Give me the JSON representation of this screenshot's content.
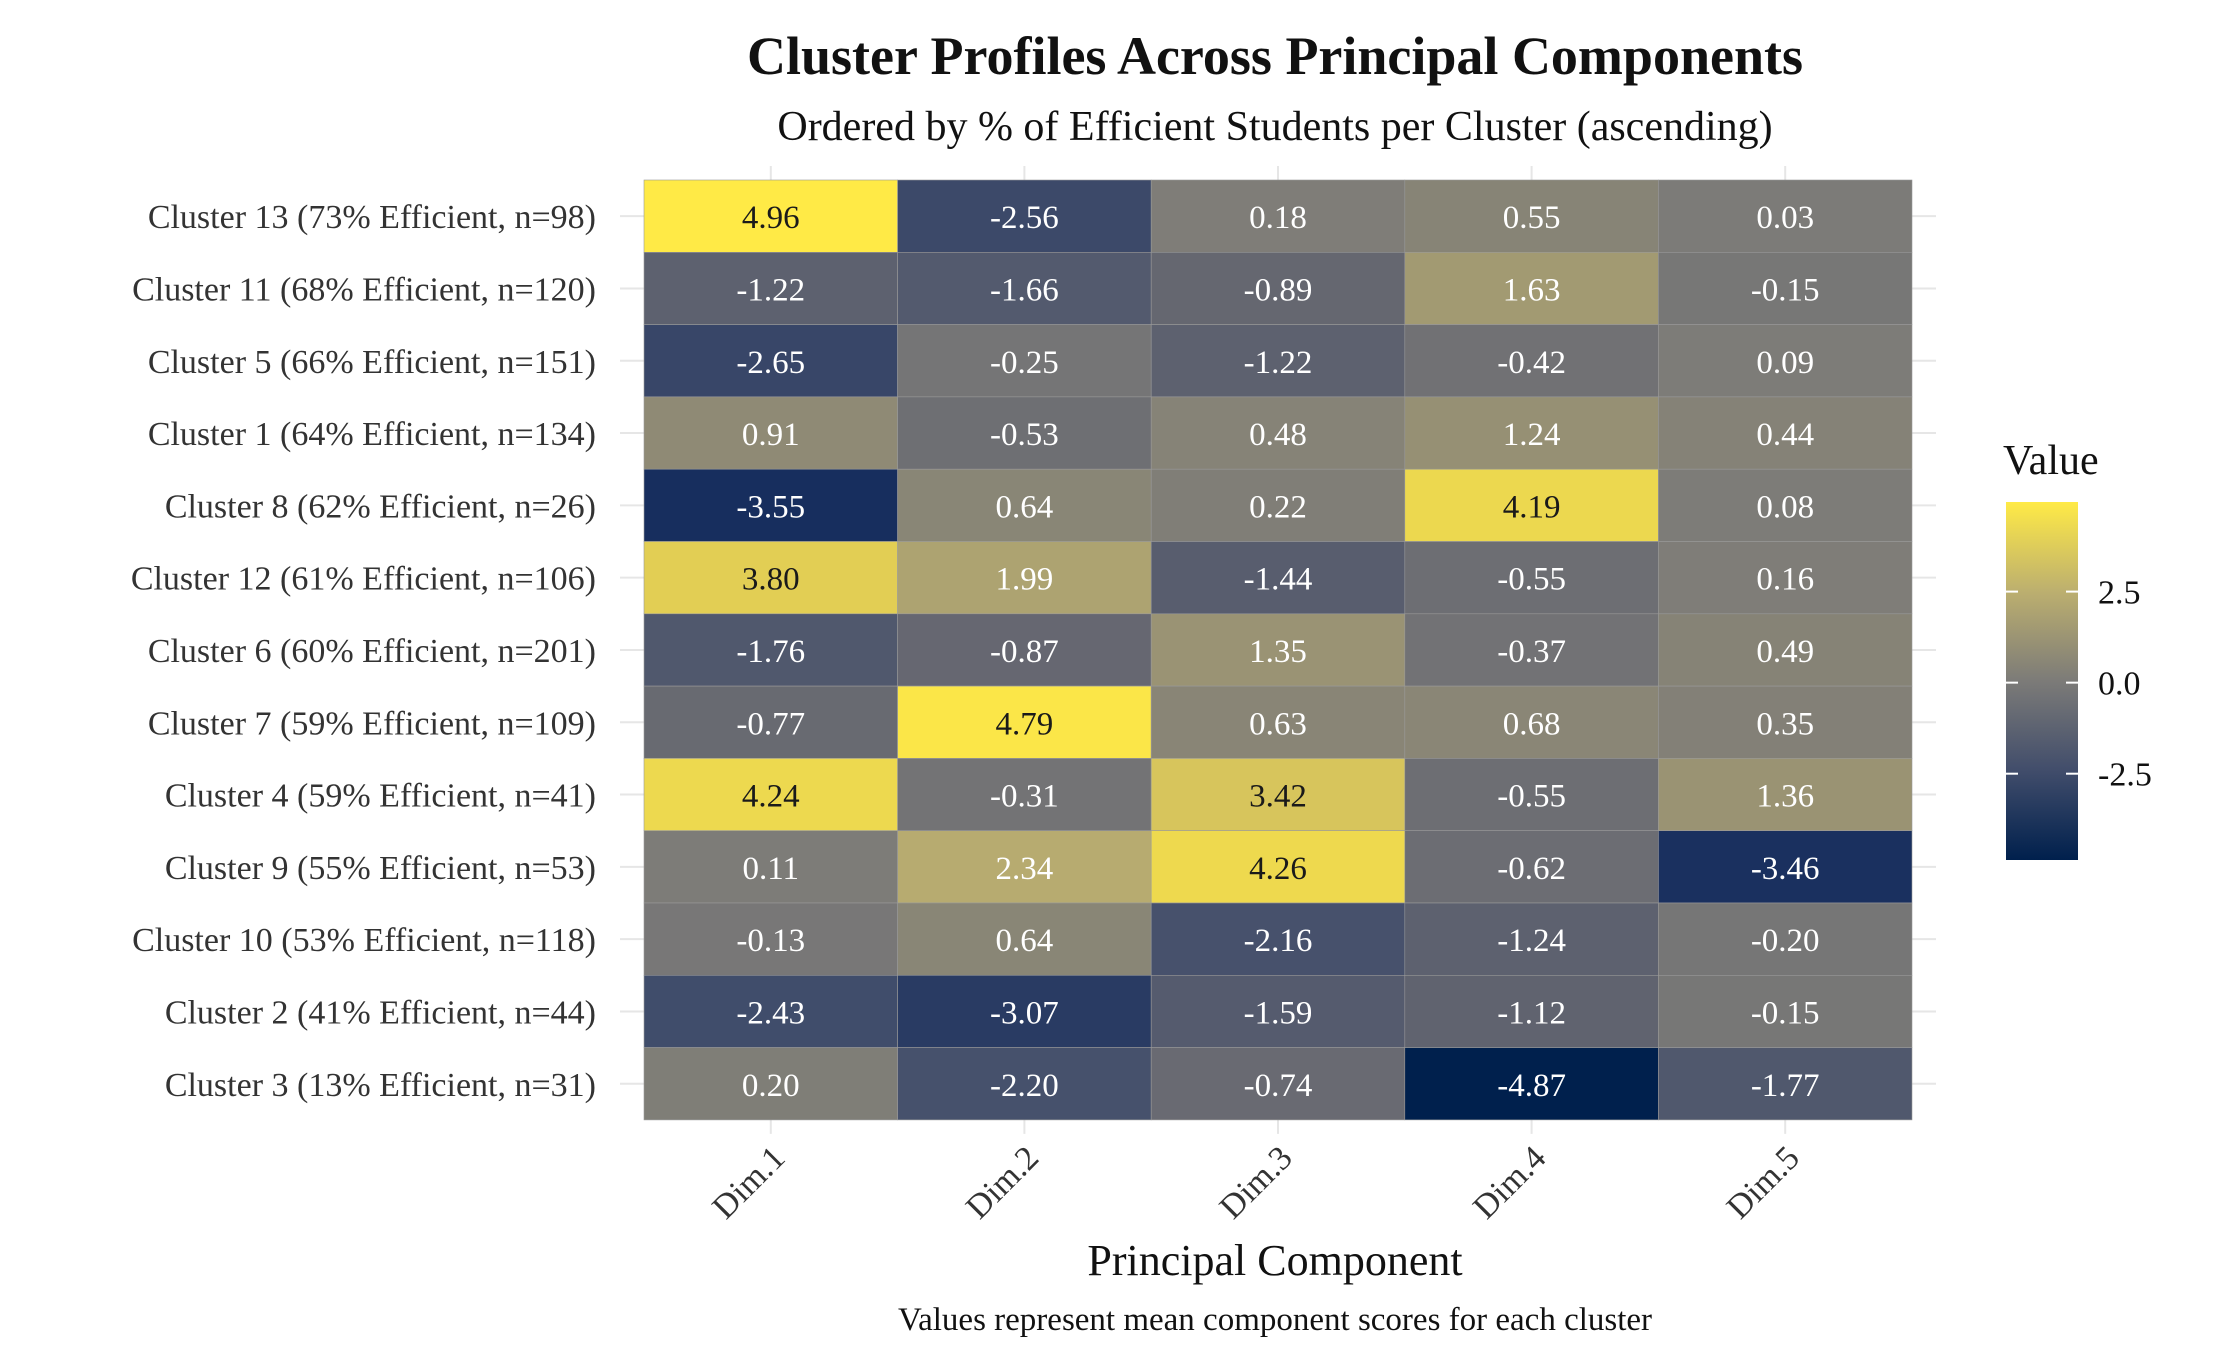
{
  "chart_data": {
    "type": "heatmap",
    "title": "Cluster Profiles Across Principal Components",
    "subtitle": "Ordered by % of Efficient Students per Cluster (ascending)",
    "xlabel": "Principal Component",
    "ylabel": "",
    "caption": "Values represent mean component scores for each cluster",
    "columns": [
      "Dim.1",
      "Dim.2",
      "Dim.3",
      "Dim.4",
      "Dim.5"
    ],
    "rows": [
      "Cluster 13 (73% Efficient, n=98)",
      "Cluster 11 (68% Efficient, n=120)",
      "Cluster 5 (66% Efficient, n=151)",
      "Cluster 1 (64% Efficient, n=134)",
      "Cluster 8 (62% Efficient, n=26)",
      "Cluster 12 (61% Efficient, n=106)",
      "Cluster 6 (60% Efficient, n=201)",
      "Cluster 7 (59% Efficient, n=109)",
      "Cluster 4 (59% Efficient, n=41)",
      "Cluster 9 (55% Efficient, n=53)",
      "Cluster 10 (53% Efficient, n=118)",
      "Cluster 2 (41% Efficient, n=44)",
      "Cluster 3 (13% Efficient, n=31)"
    ],
    "values": [
      [
        4.96,
        -2.56,
        0.18,
        0.55,
        0.03
      ],
      [
        -1.22,
        -1.66,
        -0.89,
        1.63,
        -0.15
      ],
      [
        -2.65,
        -0.25,
        -1.22,
        -0.42,
        0.09
      ],
      [
        0.91,
        -0.53,
        0.48,
        1.24,
        0.44
      ],
      [
        -3.55,
        0.64,
        0.22,
        4.19,
        0.08
      ],
      [
        3.8,
        1.99,
        -1.44,
        -0.55,
        0.16
      ],
      [
        -1.76,
        -0.87,
        1.35,
        -0.37,
        0.49
      ],
      [
        -0.77,
        4.79,
        0.63,
        0.68,
        0.35
      ],
      [
        4.24,
        -0.31,
        3.42,
        -0.55,
        1.36
      ],
      [
        0.11,
        2.34,
        4.26,
        -0.62,
        -3.46
      ],
      [
        -0.13,
        0.64,
        -2.16,
        -1.24,
        -0.2
      ],
      [
        -2.43,
        -3.07,
        -1.59,
        -1.12,
        -0.15
      ],
      [
        0.2,
        -2.2,
        -0.74,
        -4.87,
        -1.77
      ]
    ],
    "labels": [
      [
        "4.96",
        "-2.56",
        "0.18",
        "0.55",
        "0.03"
      ],
      [
        "-1.22",
        "-1.66",
        "-0.89",
        "1.63",
        "-0.15"
      ],
      [
        "-2.65",
        "-0.25",
        "-1.22",
        "-0.42",
        "0.09"
      ],
      [
        "0.91",
        "-0.53",
        "0.48",
        "1.24",
        "0.44"
      ],
      [
        "-3.55",
        "0.64",
        "0.22",
        "4.19",
        "0.08"
      ],
      [
        "3.80",
        "1.99",
        "-1.44",
        "-0.55",
        "0.16"
      ],
      [
        "-1.76",
        "-0.87",
        "1.35",
        "-0.37",
        "0.49"
      ],
      [
        "-0.77",
        "4.79",
        "0.63",
        "0.68",
        "0.35"
      ],
      [
        "4.24",
        "-0.31",
        "3.42",
        "-0.55",
        "1.36"
      ],
      [
        "0.11",
        "2.34",
        "4.26",
        "-0.62",
        "-3.46"
      ],
      [
        "-0.13",
        "0.64",
        "-2.16",
        "-1.24",
        "-0.20"
      ],
      [
        "-2.43",
        "-3.07",
        "-1.59",
        "-1.12",
        "-0.15"
      ],
      [
        "0.20",
        "-2.20",
        "-0.74",
        "-4.87",
        "-1.77"
      ]
    ],
    "color_range": [
      -4.87,
      4.96
    ],
    "colormap": "cividis",
    "colors": [
      "#00204D",
      "#7C7B78",
      "#FFEA46"
    ],
    "legend": {
      "title": "Value",
      "ticks": [
        2.5,
        0.0,
        -2.5
      ],
      "tick_labels": [
        "2.5",
        "0.0",
        "-2.5"
      ],
      "position": "right"
    }
  }
}
